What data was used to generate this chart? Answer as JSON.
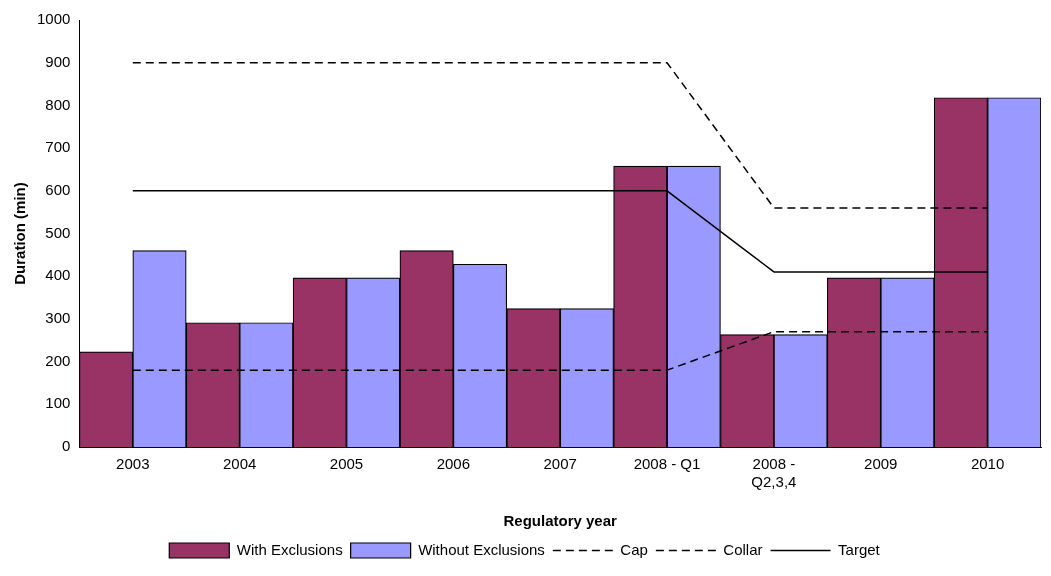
{
  "chart_data": {
    "type": "bar",
    "xlabel": "Regulatory year",
    "ylabel": "Duration (min)",
    "categories": [
      "2003",
      "2004",
      "2005",
      "2006",
      "2007",
      "2008 - Q1",
      "2008 - Q2,3,4",
      "2009",
      "2010"
    ],
    "series": [
      {
        "name": "With Exclusions",
        "color": "#993366",
        "values": [
          223,
          291,
          396,
          460,
          324,
          658,
          263,
          396,
          818
        ]
      },
      {
        "name": "Without Exclusions",
        "color": "#9999ff",
        "values": [
          460,
          291,
          396,
          428,
          324,
          658,
          263,
          396,
          818
        ]
      },
      {
        "name": "Cap",
        "type": "line",
        "line_style": "dashed",
        "color": "#000000",
        "values": [
          900,
          900,
          900,
          900,
          900,
          900,
          560,
          560,
          560
        ]
      },
      {
        "name": "Collar",
        "type": "line",
        "line_style": "dashed",
        "color": "#000000",
        "values": [
          180,
          180,
          180,
          180,
          180,
          180,
          270,
          270,
          270
        ]
      },
      {
        "name": "Target",
        "type": "line",
        "line_style": "solid",
        "color": "#000000",
        "values": [
          600,
          600,
          600,
          600,
          600,
          600,
          410,
          410,
          410
        ]
      }
    ],
    "ylim": [
      0,
      1000
    ],
    "yticks": [
      0,
      100,
      200,
      300,
      400,
      500,
      600,
      700,
      800,
      900,
      1000
    ],
    "grid": false,
    "legend": "bottom",
    "marker": "none"
  }
}
